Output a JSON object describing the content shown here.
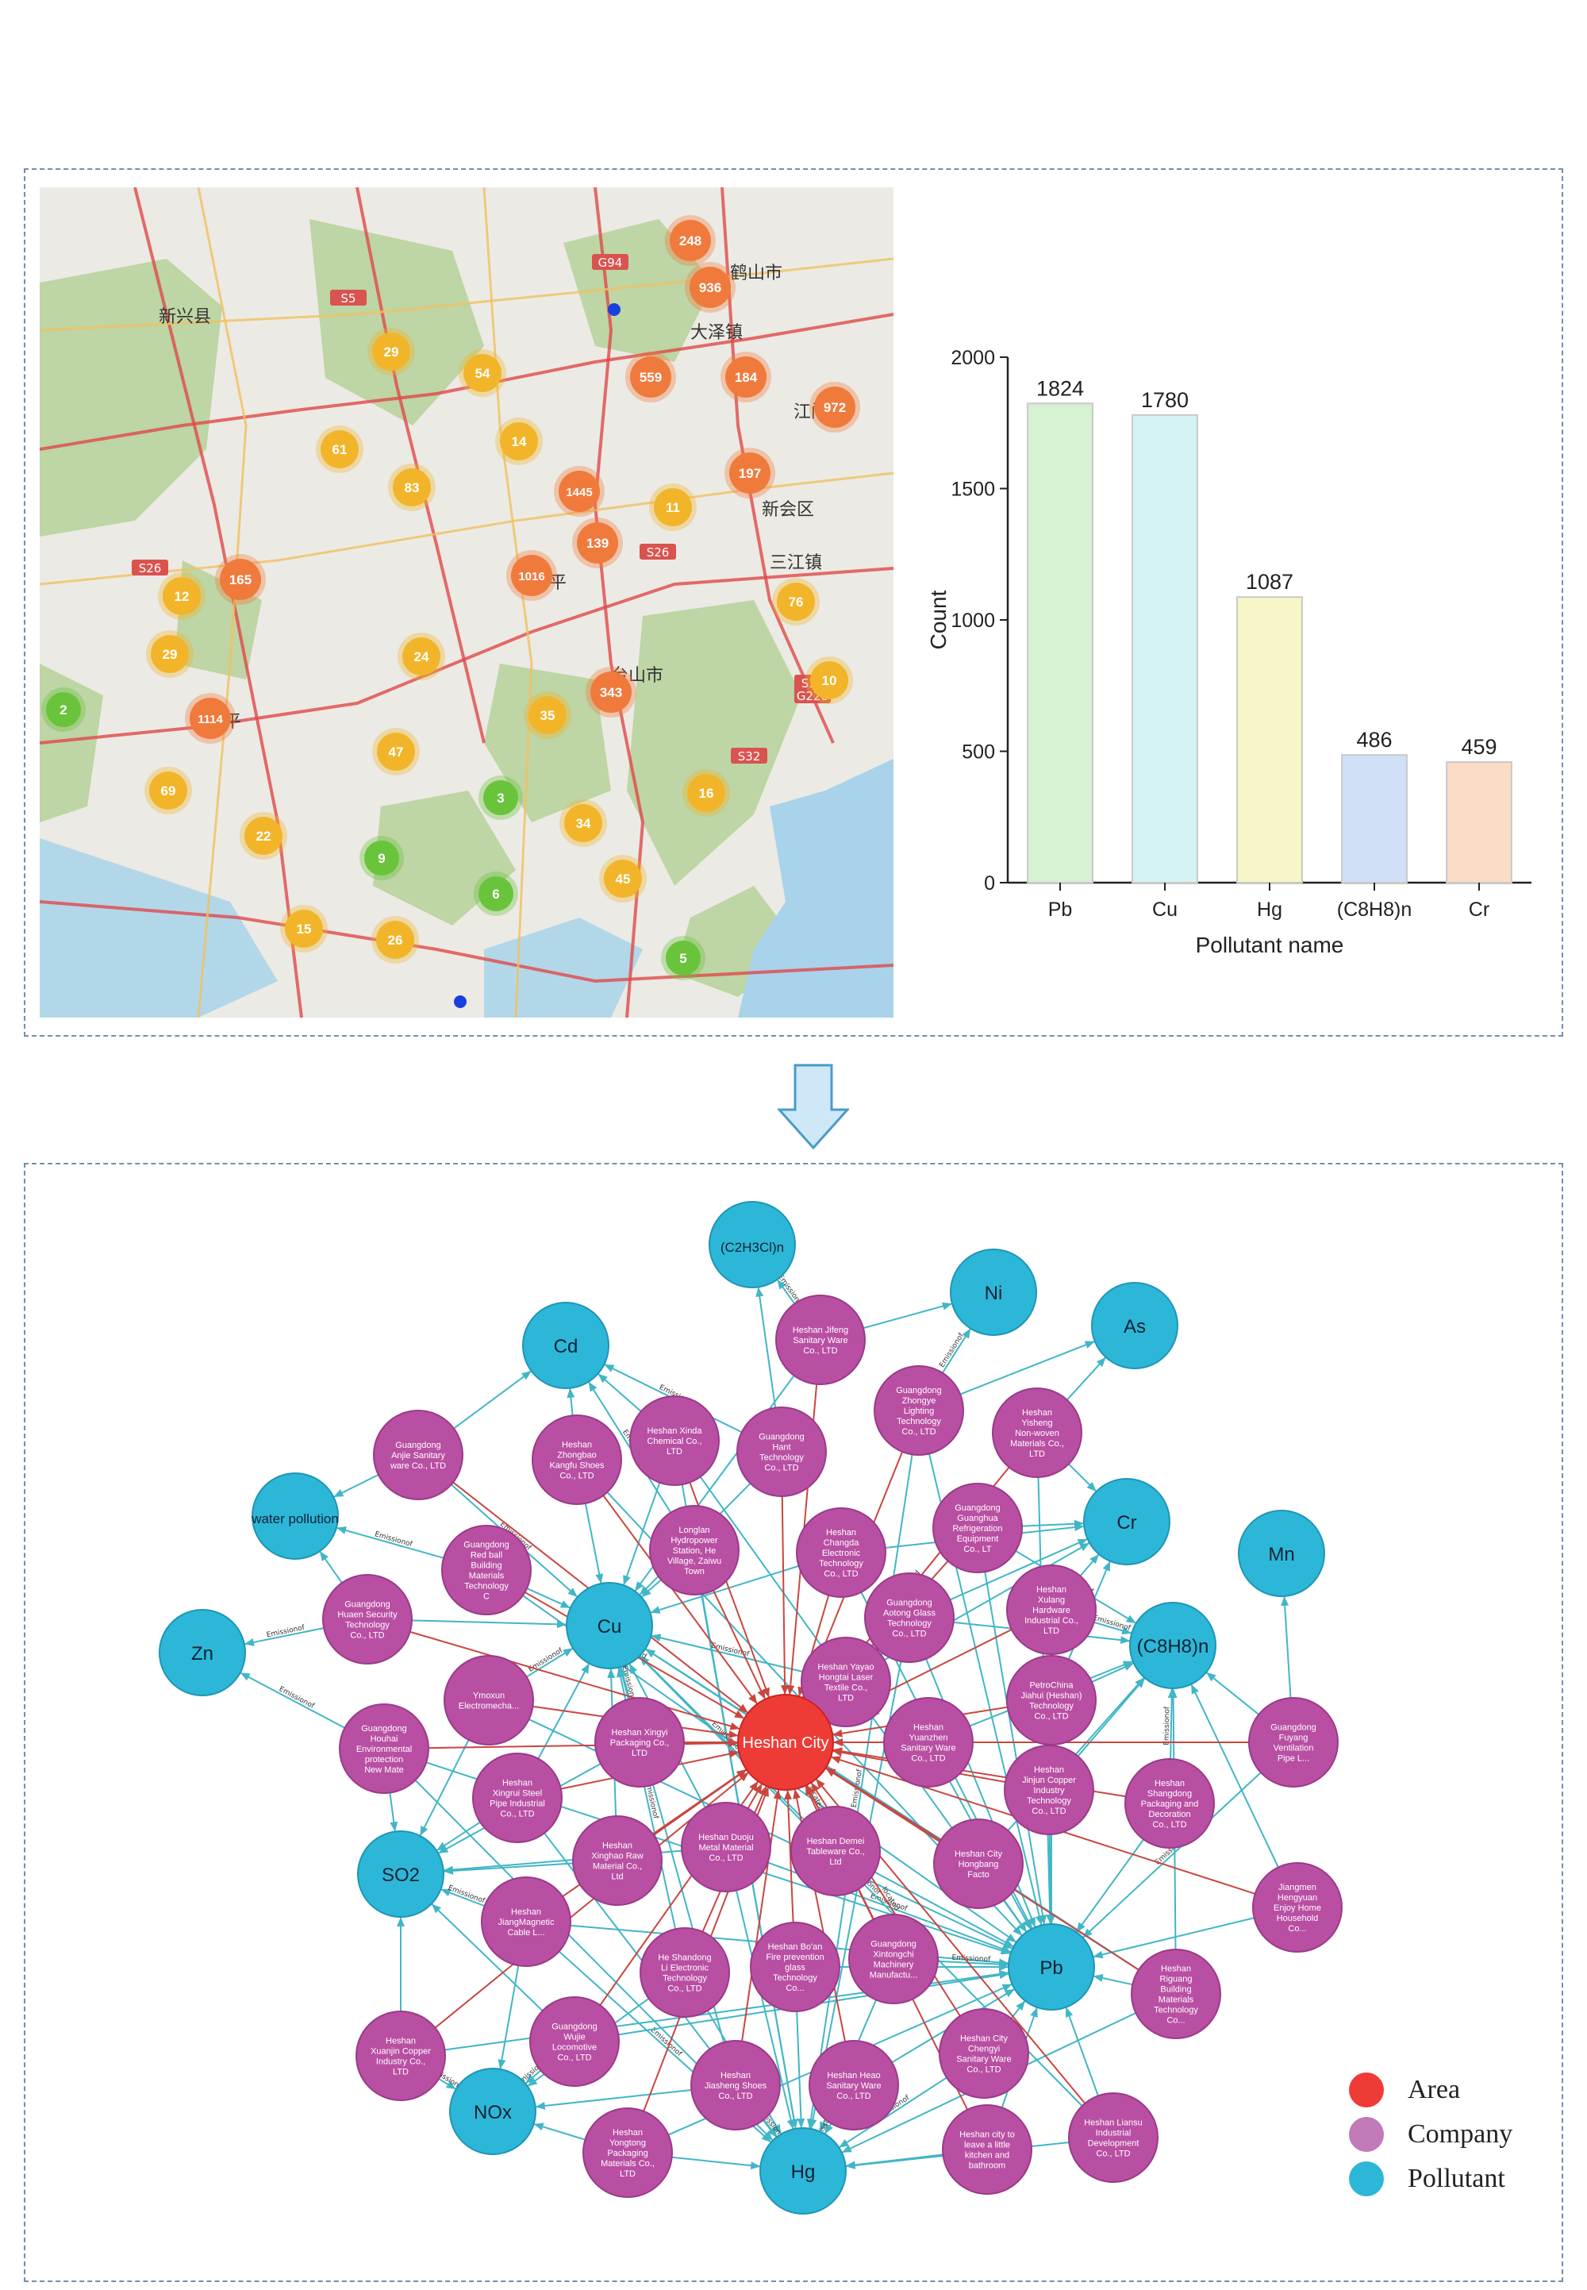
{
  "colors": {
    "area": "#ef3b36",
    "company": "#b94fa3",
    "pollutant": "#2cb7d8",
    "emission_edge": "#41b6c6",
    "located_edge": "#c9463f",
    "cluster_orange": "#f07a3c",
    "cluster_yellow": "#f2b52a",
    "cluster_green": "#69c43b",
    "bar_edge": "#c9c9c9"
  },
  "map": {
    "place_names": [
      "新兴县",
      "江门市",
      "鹤山市",
      "新会区",
      "开平",
      "台山市",
      "恩平",
      "大泽镇",
      "三江镇"
    ],
    "road_labels": [
      "G94",
      "S5",
      "S26",
      "S26",
      "S32",
      "G228",
      "S32"
    ],
    "clusters": [
      {
        "label": "248",
        "kind": "orange"
      },
      {
        "label": "936",
        "kind": "orange"
      },
      {
        "label": "559",
        "kind": "orange"
      },
      {
        "label": "184",
        "kind": "orange"
      },
      {
        "label": "972",
        "kind": "orange"
      },
      {
        "label": "197",
        "kind": "orange"
      },
      {
        "label": "1445",
        "kind": "orange"
      },
      {
        "label": "139",
        "kind": "orange"
      },
      {
        "label": "1016",
        "kind": "orange"
      },
      {
        "label": "165",
        "kind": "orange"
      },
      {
        "label": "343",
        "kind": "orange"
      },
      {
        "label": "1114",
        "kind": "orange"
      },
      {
        "label": "29",
        "kind": "yellow"
      },
      {
        "label": "54",
        "kind": "yellow"
      },
      {
        "label": "61",
        "kind": "yellow"
      },
      {
        "label": "83",
        "kind": "yellow"
      },
      {
        "label": "14",
        "kind": "yellow"
      },
      {
        "label": "11",
        "kind": "yellow"
      },
      {
        "label": "12",
        "kind": "yellow"
      },
      {
        "label": "29",
        "kind": "yellow"
      },
      {
        "label": "24",
        "kind": "yellow"
      },
      {
        "label": "76",
        "kind": "yellow"
      },
      {
        "label": "10",
        "kind": "yellow"
      },
      {
        "label": "35",
        "kind": "yellow"
      },
      {
        "label": "47",
        "kind": "yellow"
      },
      {
        "label": "69",
        "kind": "yellow"
      },
      {
        "label": "16",
        "kind": "yellow"
      },
      {
        "label": "34",
        "kind": "yellow"
      },
      {
        "label": "22",
        "kind": "yellow"
      },
      {
        "label": "45",
        "kind": "yellow"
      },
      {
        "label": "15",
        "kind": "yellow"
      },
      {
        "label": "26",
        "kind": "yellow"
      },
      {
        "label": "2",
        "kind": "green"
      },
      {
        "label": "3",
        "kind": "green"
      },
      {
        "label": "9",
        "kind": "green"
      },
      {
        "label": "6",
        "kind": "green"
      },
      {
        "label": "5",
        "kind": "green"
      }
    ]
  },
  "chart_data": {
    "type": "bar",
    "categories": [
      "Pb",
      "Cu",
      "Hg",
      "(C8H8)n",
      "Cr"
    ],
    "values": [
      1824,
      1780,
      1087,
      486,
      459
    ],
    "colors": [
      "#d6f2d2",
      "#d6f3f3",
      "#f7f6c6",
      "#cfe0f7",
      "#fbdcc6"
    ],
    "xlabel": "Pollutant name",
    "ylabel": "Count",
    "ylim": [
      0,
      2000
    ],
    "yticks": [
      0,
      500,
      1000,
      1500,
      2000
    ],
    "grid": false
  },
  "graph": {
    "center": {
      "id": "heshan",
      "label": "Heshan City"
    },
    "pollutants": [
      {
        "id": "C2H3Cl",
        "label": "(C2H3Cl)n"
      },
      {
        "id": "Ni",
        "label": "Ni"
      },
      {
        "id": "As",
        "label": "As"
      },
      {
        "id": "Cd",
        "label": "Cd"
      },
      {
        "id": "water",
        "label": "water pollution"
      },
      {
        "id": "Cr",
        "label": "Cr"
      },
      {
        "id": "Mn",
        "label": "Mn"
      },
      {
        "id": "Cu",
        "label": "Cu"
      },
      {
        "id": "C8H8",
        "label": "(C8H8)n"
      },
      {
        "id": "Zn",
        "label": "Zn"
      },
      {
        "id": "SO2",
        "label": "SO2"
      },
      {
        "id": "Pb",
        "label": "Pb"
      },
      {
        "id": "NOx",
        "label": "NOx"
      },
      {
        "id": "Hg",
        "label": "Hg"
      }
    ],
    "companies": [
      {
        "id": "c1",
        "lines": [
          "Heshan Jifeng",
          "Sanitary Ware",
          "Co., LTD"
        ]
      },
      {
        "id": "c2",
        "lines": [
          "Guangdong",
          "Zhongye",
          "Lighting",
          "Technology",
          "Co., LTD"
        ]
      },
      {
        "id": "c3",
        "lines": [
          "Heshan",
          "Yisheng",
          "Non-woven",
          "Materials Co.,",
          "LTD"
        ]
      },
      {
        "id": "c4",
        "lines": [
          "Guangdong",
          "Anjie Sanitary",
          "ware Co., LTD"
        ]
      },
      {
        "id": "c5",
        "lines": [
          "Heshan",
          "Zhongbao",
          "Kangfu Shoes",
          "Co., LTD"
        ]
      },
      {
        "id": "c6",
        "lines": [
          "Heshan Xinda",
          "Chemical Co.,",
          "LTD"
        ]
      },
      {
        "id": "c7",
        "lines": [
          "Guangdong",
          "Hant",
          "Technology",
          "Co., LTD"
        ]
      },
      {
        "id": "c8",
        "lines": [
          "Guangdong",
          "Guanghua",
          "Refrigeration",
          "Equipment",
          "Co., LT"
        ]
      },
      {
        "id": "c9",
        "lines": [
          "Guangdong",
          "Red ball",
          "Building",
          "Materials",
          "Technology",
          "C"
        ]
      },
      {
        "id": "c10",
        "lines": [
          "Longlan",
          "Hydropower",
          "Station, He",
          "Village, Zaiwu",
          "Town"
        ]
      },
      {
        "id": "c11",
        "lines": [
          "Heshan",
          "Changda",
          "Electronic",
          "Technology",
          "Co., LTD"
        ]
      },
      {
        "id": "c12",
        "lines": [
          "Heshan",
          "Xulang",
          "Hardware",
          "Industrial Co.,",
          "LTD"
        ]
      },
      {
        "id": "c13",
        "lines": [
          "Guangdong",
          "Huaen Security",
          "Technology",
          "Co., LTD"
        ]
      },
      {
        "id": "c14",
        "lines": [
          "Guangdong",
          "Aotong Glass",
          "Technology",
          "Co., LTD"
        ]
      },
      {
        "id": "c15",
        "lines": [
          "Ymoxun",
          "Electromecha..."
        ]
      },
      {
        "id": "c16",
        "lines": [
          "Heshan Yayao",
          "Hongtai Laser",
          "Textile Co.,",
          "LTD"
        ]
      },
      {
        "id": "c17",
        "lines": [
          "PetroChina",
          "Jiahui (Heshan)",
          "Technology",
          "Co., LTD"
        ]
      },
      {
        "id": "c18",
        "lines": [
          "Guangdong",
          "Houhai",
          "Environmental",
          "protection",
          "New Mate"
        ]
      },
      {
        "id": "c19",
        "lines": [
          "Heshan Xingyi",
          "Packaging Co.,",
          "LTD"
        ]
      },
      {
        "id": "c20",
        "lines": [
          "Heshan",
          "Yuanzhen",
          "Sanitary Ware",
          "Co., LTD"
        ]
      },
      {
        "id": "c21",
        "lines": [
          "Guangdong",
          "Fuyang",
          "Ventilation",
          "Pipe L..."
        ]
      },
      {
        "id": "c22",
        "lines": [
          "Heshan",
          "Xingrui Steel",
          "Pipe Industrial",
          "Co., LTD"
        ]
      },
      {
        "id": "c23",
        "lines": [
          "Heshan",
          "Jinjun Copper",
          "Industry",
          "Technology",
          "Co., LTD"
        ]
      },
      {
        "id": "c24",
        "lines": [
          "Heshan",
          "Shangdong",
          "Packaging and",
          "Decoration",
          "Co., LTD"
        ]
      },
      {
        "id": "c25",
        "lines": [
          "Heshan",
          "Xinghao Raw",
          "Material Co.,",
          "Ltd"
        ]
      },
      {
        "id": "c26",
        "lines": [
          "Heshan Duoju",
          "Metal Material",
          "Co., LTD"
        ]
      },
      {
        "id": "c27",
        "lines": [
          "Heshan Demei",
          "Tableware Co.,",
          "Ltd"
        ]
      },
      {
        "id": "c28",
        "lines": [
          "Heshan City",
          "Hongbang",
          "Facto"
        ]
      },
      {
        "id": "c29",
        "lines": [
          "Jiangmen",
          "Hengyuan",
          "Enjoy Home",
          "Household",
          "Co..."
        ]
      },
      {
        "id": "c30",
        "lines": [
          "Heshan",
          "JiangMagnetic",
          "Cable L..."
        ]
      },
      {
        "id": "c31",
        "lines": [
          "He Shandong",
          "Li Electronic",
          "Technology",
          "Co., LTD"
        ]
      },
      {
        "id": "c32",
        "lines": [
          "Heshan Bo'an",
          "Fire prevention",
          "glass",
          "Technology",
          "Co..."
        ]
      },
      {
        "id": "c33",
        "lines": [
          "Guangdong",
          "Xintongchi",
          "Machinery",
          "Manufactu..."
        ]
      },
      {
        "id": "c34",
        "lines": [
          "Heshan",
          "Riguang",
          "Building",
          "Materials",
          "Technology",
          "Co..."
        ]
      },
      {
        "id": "c35",
        "lines": [
          "Heshan",
          "Xuanjin Copper",
          "Industry Co.,",
          "LTD"
        ]
      },
      {
        "id": "c36",
        "lines": [
          "Guangdong",
          "Wujie",
          "Locomotive",
          "Co., LTD"
        ]
      },
      {
        "id": "c37",
        "lines": [
          "Heshan",
          "Jiasheng Shoes",
          "Co., LTD"
        ]
      },
      {
        "id": "c38",
        "lines": [
          "Heshan Heao",
          "Sanitary Ware",
          "Co., LTD"
        ]
      },
      {
        "id": "c39",
        "lines": [
          "Heshan City",
          "Chengyi",
          "Sanitary Ware",
          "Co., LTD"
        ]
      },
      {
        "id": "c40",
        "lines": [
          "Heshan Liansu",
          "Industrial",
          "Development",
          "Co., LTD"
        ]
      },
      {
        "id": "c41",
        "lines": [
          "Heshan",
          "Yongtong",
          "Packaging",
          "Materials Co.,",
          "LTD"
        ]
      },
      {
        "id": "c42",
        "lines": [
          "Heshan city to",
          "leave a little",
          "kitchen and",
          "bathroom"
        ]
      }
    ],
    "edge_labels": {
      "emission": "Emissionof",
      "located": "located"
    }
  },
  "legend": [
    {
      "label": "Area",
      "color": "#ef3b36"
    },
    {
      "label": "Company",
      "color": "#c07ab8"
    },
    {
      "label": "Pollutant",
      "color": "#2cb7d8"
    }
  ]
}
